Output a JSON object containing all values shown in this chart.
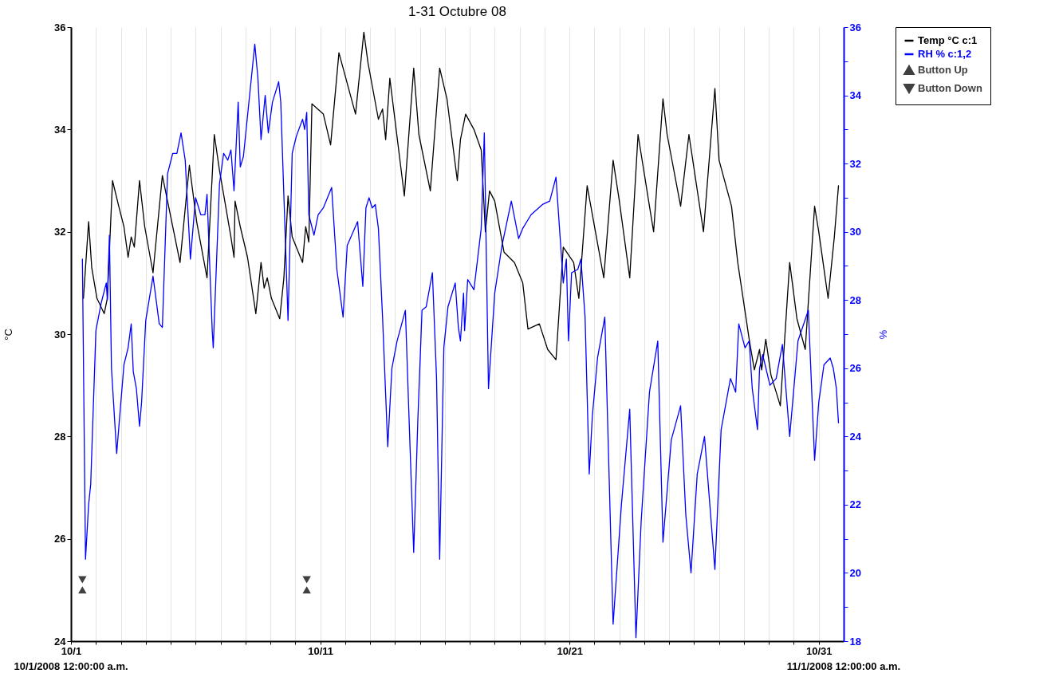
{
  "chart_data": {
    "type": "line",
    "title": "1-31 Octubre 08",
    "ylabel": "°C",
    "y2label": "%",
    "xlim": [
      "2008-10-01",
      "2008-11-01"
    ],
    "xticks": [
      {
        "value": "2008-10-01",
        "label": "10/1"
      },
      {
        "value": "2008-10-02",
        "label": null
      },
      {
        "value": "2008-10-03",
        "label": null
      },
      {
        "value": "2008-10-04",
        "label": null
      },
      {
        "value": "2008-10-05",
        "label": null
      },
      {
        "value": "2008-10-06",
        "label": null
      },
      {
        "value": "2008-10-07",
        "label": null
      },
      {
        "value": "2008-10-08",
        "label": null
      },
      {
        "value": "2008-10-09",
        "label": null
      },
      {
        "value": "2008-10-10",
        "label": null
      },
      {
        "value": "2008-10-11",
        "label": "10/11"
      },
      {
        "value": "2008-10-12",
        "label": null
      },
      {
        "value": "2008-10-13",
        "label": null
      },
      {
        "value": "2008-10-14",
        "label": null
      },
      {
        "value": "2008-10-15",
        "label": null
      },
      {
        "value": "2008-10-16",
        "label": null
      },
      {
        "value": "2008-10-17",
        "label": null
      },
      {
        "value": "2008-10-18",
        "label": null
      },
      {
        "value": "2008-10-19",
        "label": null
      },
      {
        "value": "2008-10-20",
        "label": null
      },
      {
        "value": "2008-10-21",
        "label": "10/21"
      },
      {
        "value": "2008-10-22",
        "label": null
      },
      {
        "value": "2008-10-23",
        "label": null
      },
      {
        "value": "2008-10-24",
        "label": null
      },
      {
        "value": "2008-10-25",
        "label": null
      },
      {
        "value": "2008-10-26",
        "label": null
      },
      {
        "value": "2008-10-27",
        "label": null
      },
      {
        "value": "2008-10-28",
        "label": null
      },
      {
        "value": "2008-10-29",
        "label": null
      },
      {
        "value": "2008-10-30",
        "label": null
      },
      {
        "value": "2008-10-31",
        "label": "10/31"
      }
    ],
    "ylim": [
      24,
      36
    ],
    "yticks": [
      24,
      26,
      28,
      30,
      32,
      34,
      36
    ],
    "y2lim": [
      18,
      36
    ],
    "y2ticks": [
      18,
      {
        "value": 19,
        "label": null
      },
      20,
      {
        "value": 21,
        "label": null
      },
      22,
      {
        "value": 23,
        "label": null
      },
      24,
      {
        "value": 25,
        "label": null
      },
      26,
      {
        "value": 27,
        "label": null
      },
      28,
      {
        "value": 29,
        "label": null
      },
      30,
      {
        "value": 31,
        "label": null
      },
      32,
      {
        "value": 33,
        "label": null
      },
      34,
      {
        "value": 35,
        "label": null
      },
      36
    ],
    "grid": "x",
    "legend": "top right",
    "line_style": "solid",
    "annotations": [
      "10/1/2008 12:00:00 a.m.",
      "11/1/2008 12:00:00 a.m."
    ],
    "series": [
      {
        "name": "Temp °C c:1",
        "color": "#000000",
        "x": [
          "2008-10-01T12:00",
          "2008-10-01T17:00",
          "2008-10-01T20:00",
          "2008-10-02T01:00",
          "2008-10-02T08:00",
          "2008-10-02T11:00",
          "2008-10-02T16:00",
          "2008-10-02T22:00",
          "2008-10-03T03:00",
          "2008-10-03T07:00",
          "2008-10-03T10:00",
          "2008-10-03T13:00",
          "2008-10-03T18:00",
          "2008-10-03T23:00",
          "2008-10-04T07:00",
          "2008-10-04T16:00",
          "2008-10-04T22:00",
          "2008-10-05T09:00",
          "2008-10-05T18:00",
          "2008-10-06T01:00",
          "2008-10-06T11:00",
          "2008-10-06T18:00",
          "2008-10-06T23:00",
          "2008-10-07T10:00",
          "2008-10-07T13:00",
          "2008-10-07T14:00",
          "2008-10-07T19:00",
          "2008-10-08T02:00",
          "2008-10-08T10:00",
          "2008-10-08T15:00",
          "2008-10-08T18:00",
          "2008-10-08T21:00",
          "2008-10-09T01:00",
          "2008-10-09T09:00",
          "2008-10-09T13:00",
          "2008-10-09T17:00",
          "2008-10-09T21:00",
          "2008-10-10T07:00",
          "2008-10-10T10:00",
          "2008-10-10T13:00",
          "2008-10-10T16:00",
          "2008-10-11T03:00",
          "2008-10-11T10:00",
          "2008-10-11T18:00",
          "2008-10-11T22:00",
          "2008-10-12T10:00",
          "2008-10-12T18:00",
          "2008-10-12T22:00",
          "2008-10-13T08:00",
          "2008-10-13T12:00",
          "2008-10-13T15:00",
          "2008-10-13T19:00",
          "2008-10-14T09:00",
          "2008-10-14T18:00",
          "2008-10-14T23:00",
          "2008-10-15T10:00",
          "2008-10-15T19:00",
          "2008-10-16T02:00",
          "2008-10-16T12:00",
          "2008-10-16T15:00",
          "2008-10-16T20:00",
          "2008-10-17T04:00",
          "2008-10-17T11:00",
          "2008-10-17T15:00",
          "2008-10-17T19:00",
          "2008-10-18T00:00",
          "2008-10-18T09:00",
          "2008-10-18T19:00",
          "2008-10-19T03:00",
          "2008-10-19T08:00",
          "2008-10-19T19:00",
          "2008-10-20T03:00",
          "2008-10-20T11:00",
          "2008-10-20T18:00",
          "2008-10-21T04:00",
          "2008-10-21T09:00",
          "2008-10-21T17:00",
          "2008-10-22T09:00",
          "2008-10-22T18:00",
          "2008-10-23T00:00",
          "2008-10-23T10:00",
          "2008-10-23T18:00",
          "2008-10-24T05:00",
          "2008-10-24T09:00",
          "2008-10-24T18:00",
          "2008-10-24T22:00",
          "2008-10-25T11:00",
          "2008-10-25T19:00",
          "2008-10-26T09:00",
          "2008-10-26T20:00",
          "2008-10-27T00:00",
          "2008-10-27T12:00",
          "2008-10-27T18:00",
          "2008-10-28T05:00",
          "2008-10-28T10:00",
          "2008-10-28T15:00",
          "2008-10-28T17:00",
          "2008-10-28T21:00",
          "2008-10-29T02:00",
          "2008-10-29T11:00",
          "2008-10-29T20:00",
          "2008-10-30T03:00",
          "2008-10-30T11:00",
          "2008-10-30T20:00",
          "2008-10-31T00:00",
          "2008-10-31T09:00",
          "2008-10-31T15:00",
          "2008-10-31T19:00"
        ],
        "values": [
          30.7,
          32.2,
          31.3,
          30.7,
          30.4,
          30.7,
          33.0,
          32.5,
          32.1,
          31.5,
          31.9,
          31.7,
          33.0,
          32.1,
          31.2,
          33.1,
          32.5,
          31.4,
          33.3,
          32.2,
          31.1,
          33.9,
          33.2,
          31.9,
          31.5,
          32.6,
          32.1,
          31.5,
          30.4,
          31.4,
          30.9,
          31.1,
          30.7,
          30.3,
          31.1,
          32.7,
          31.9,
          31.4,
          32.1,
          31.8,
          34.5,
          34.3,
          33.7,
          35.5,
          35.2,
          34.3,
          35.9,
          35.3,
          34.2,
          34.4,
          33.8,
          35.0,
          32.7,
          35.2,
          33.9,
          32.8,
          35.2,
          34.6,
          33.0,
          33.8,
          34.3,
          34.0,
          33.6,
          32.0,
          32.8,
          32.6,
          31.6,
          31.4,
          31.0,
          30.1,
          30.2,
          29.7,
          29.5,
          31.7,
          31.4,
          30.7,
          32.9,
          31.1,
          33.4,
          32.6,
          31.1,
          33.9,
          32.5,
          32.0,
          34.6,
          33.9,
          32.5,
          33.9,
          32.0,
          34.8,
          33.4,
          32.5,
          31.4,
          29.9,
          29.3,
          29.7,
          29.3,
          29.9,
          29.2,
          28.6,
          31.4,
          30.3,
          29.7,
          32.5,
          32.0,
          30.7,
          31.9,
          32.9
        ]
      },
      {
        "name": "RH % c:1,2",
        "color": "#0000ff",
        "axis": "y2",
        "x": [
          "2008-10-01T11:00",
          "2008-10-01T14:00",
          "2008-10-01T17:00",
          "2008-10-01T19:00",
          "2008-10-02T00:00",
          "2008-10-02T05:00",
          "2008-10-02T10:00",
          "2008-10-02T11:00",
          "2008-10-02T13:00",
          "2008-10-02T15:00",
          "2008-10-02T20:00",
          "2008-10-03T03:00",
          "2008-10-03T07:00",
          "2008-10-03T10:00",
          "2008-10-03T12:00",
          "2008-10-03T15:00",
          "2008-10-03T18:00",
          "2008-10-03T20:00",
          "2008-10-04T00:00",
          "2008-10-04T07:00",
          "2008-10-04T13:00",
          "2008-10-04T16:00",
          "2008-10-04T21:00",
          "2008-10-05T02:00",
          "2008-10-05T06:00",
          "2008-10-05T10:00",
          "2008-10-05T14:00",
          "2008-10-05T19:00",
          "2008-10-06T00:00",
          "2008-10-06T05:00",
          "2008-10-06T09:00",
          "2008-10-06T11:00",
          "2008-10-06T16:00",
          "2008-10-06T17:00",
          "2008-10-06T23:00",
          "2008-10-07T03:00",
          "2008-10-07T07:00",
          "2008-10-07T10:00",
          "2008-10-07T13:00",
          "2008-10-07T17:00",
          "2008-10-07T19:00",
          "2008-10-07T22:00",
          "2008-10-08T01:00",
          "2008-10-08T09:00",
          "2008-10-08T12:00",
          "2008-10-08T15:00",
          "2008-10-08T19:00",
          "2008-10-08T22:00",
          "2008-10-09T02:00",
          "2008-10-09T08:00",
          "2008-10-09T10:00",
          "2008-10-09T17:00",
          "2008-10-09T21:00",
          "2008-10-10T01:00",
          "2008-10-10T07:00",
          "2008-10-10T09:00",
          "2008-10-10T11:00",
          "2008-10-10T13:00",
          "2008-10-10T18:00",
          "2008-10-10T22:00",
          "2008-10-11T03:00",
          "2008-10-11T11:00",
          "2008-10-11T16:00",
          "2008-10-11T22:00",
          "2008-10-12T02:00",
          "2008-10-12T12:00",
          "2008-10-12T17:00",
          "2008-10-12T20:00",
          "2008-10-12T23:00",
          "2008-10-13T02:00",
          "2008-10-13T05:00",
          "2008-10-13T08:00",
          "2008-10-13T12:00",
          "2008-10-13T17:00",
          "2008-10-13T21:00",
          "2008-10-14T02:00",
          "2008-10-14T10:00",
          "2008-10-14T14:00",
          "2008-10-14T18:00",
          "2008-10-14T22:00",
          "2008-10-15T02:00",
          "2008-10-15T06:00",
          "2008-10-15T12:00",
          "2008-10-15T16:00",
          "2008-10-15T19:00",
          "2008-10-15T23:00",
          "2008-10-16T03:00",
          "2008-10-16T10:00",
          "2008-10-16T13:00",
          "2008-10-16T15:00",
          "2008-10-16T18:00",
          "2008-10-16T19:00",
          "2008-10-16T22:00",
          "2008-10-17T04:00",
          "2008-10-17T11:00",
          "2008-10-17T14:00",
          "2008-10-17T18:00",
          "2008-10-18T00:00",
          "2008-10-18T07:00",
          "2008-10-18T16:00",
          "2008-10-18T23:00",
          "2008-10-19T03:00",
          "2008-10-19T11:00",
          "2008-10-19T22:00",
          "2008-10-20T05:00",
          "2008-10-20T11:00",
          "2008-10-20T18:00",
          "2008-10-20T21:00",
          "2008-10-20T23:00",
          "2008-10-21T02:00",
          "2008-10-21T08:00",
          "2008-10-21T11:00",
          "2008-10-21T15:00",
          "2008-10-21T19:00",
          "2008-10-21T22:00",
          "2008-10-22T03:00",
          "2008-10-22T10:00",
          "2008-10-22T18:00",
          "2008-10-23T02:00",
          "2008-10-23T10:00",
          "2008-10-23T16:00",
          "2008-10-23T21:00",
          "2008-10-24T05:00",
          "2008-10-24T13:00",
          "2008-10-24T18:00",
          "2008-10-25T02:00",
          "2008-10-25T11:00",
          "2008-10-25T16:00",
          "2008-10-25T21:00",
          "2008-10-26T03:00",
          "2008-10-26T10:00",
          "2008-10-26T20:00",
          "2008-10-27T02:00",
          "2008-10-27T11:00",
          "2008-10-27T16:00",
          "2008-10-27T19:00",
          "2008-10-28T01:00",
          "2008-10-28T05:00",
          "2008-10-28T08:00",
          "2008-10-28T13:00",
          "2008-10-28T15:00",
          "2008-10-28T18:00",
          "2008-10-29T01:00",
          "2008-10-29T07:00",
          "2008-10-29T13:00",
          "2008-10-29T20:00",
          "2008-10-30T04:00",
          "2008-10-30T14:00",
          "2008-10-30T20:00",
          "2008-10-31T00:00",
          "2008-10-31T05:00",
          "2008-10-31T11:00",
          "2008-10-31T14:00",
          "2008-10-31T17:00",
          "2008-10-31T19:00"
        ],
        "values": [
          29.2,
          20.4,
          22.0,
          22.6,
          27.1,
          27.9,
          28.5,
          28.0,
          29.9,
          26.0,
          23.5,
          26.1,
          26.6,
          27.3,
          25.9,
          25.4,
          24.3,
          25.0,
          27.4,
          28.7,
          27.3,
          27.2,
          31.7,
          32.3,
          32.3,
          32.9,
          32.1,
          29.2,
          31.0,
          30.5,
          30.5,
          31.1,
          27.1,
          26.6,
          31.4,
          32.3,
          32.1,
          32.4,
          31.2,
          33.8,
          31.9,
          32.2,
          33.1,
          35.5,
          34.5,
          32.7,
          34.0,
          32.9,
          33.8,
          34.4,
          33.8,
          27.4,
          32.3,
          32.8,
          33.3,
          33.0,
          33.5,
          30.5,
          29.9,
          30.5,
          30.7,
          31.3,
          28.9,
          27.5,
          29.6,
          30.3,
          28.4,
          30.7,
          31.0,
          30.7,
          30.8,
          30.1,
          27.5,
          23.7,
          26.0,
          26.8,
          27.7,
          24.1,
          20.6,
          24.5,
          27.7,
          27.8,
          28.8,
          25.7,
          20.4,
          26.6,
          27.8,
          28.5,
          27.2,
          26.8,
          28.2,
          27.1,
          28.6,
          28.3,
          30.1,
          32.9,
          25.4,
          28.2,
          29.6,
          30.9,
          29.8,
          30.1,
          30.5,
          30.8,
          30.9,
          31.6,
          28.5,
          29.2,
          26.8,
          28.8,
          28.9,
          29.2,
          27.5,
          22.9,
          24.6,
          26.3,
          27.5,
          18.5,
          22.0,
          24.8,
          18.1,
          21.5,
          25.3,
          26.8,
          20.9,
          23.9,
          24.9,
          21.7,
          20.0,
          22.9,
          24.0,
          20.1,
          24.2,
          25.7,
          25.3,
          27.3,
          26.6,
          26.8,
          25.4,
          24.2,
          26.0,
          26.4,
          25.5,
          25.7,
          26.7,
          24.0,
          26.8,
          27.7,
          23.3,
          25.0,
          26.1,
          26.3,
          26.0,
          25.4,
          24.4
        ]
      },
      {
        "name": "Button Up",
        "color": "#404040",
        "type": "scatter",
        "marker": "triangle",
        "x": [
          "2008-10-01T11:00",
          "2008-10-10T11:00"
        ],
        "values": [
          25.0,
          25.0
        ]
      },
      {
        "name": "Button Down",
        "color": "#404040",
        "type": "scatter",
        "marker": "triangle-down",
        "x": [
          "2008-10-01T11:00",
          "2008-10-10T11:00"
        ],
        "values": [
          25.2,
          25.2
        ]
      }
    ]
  }
}
